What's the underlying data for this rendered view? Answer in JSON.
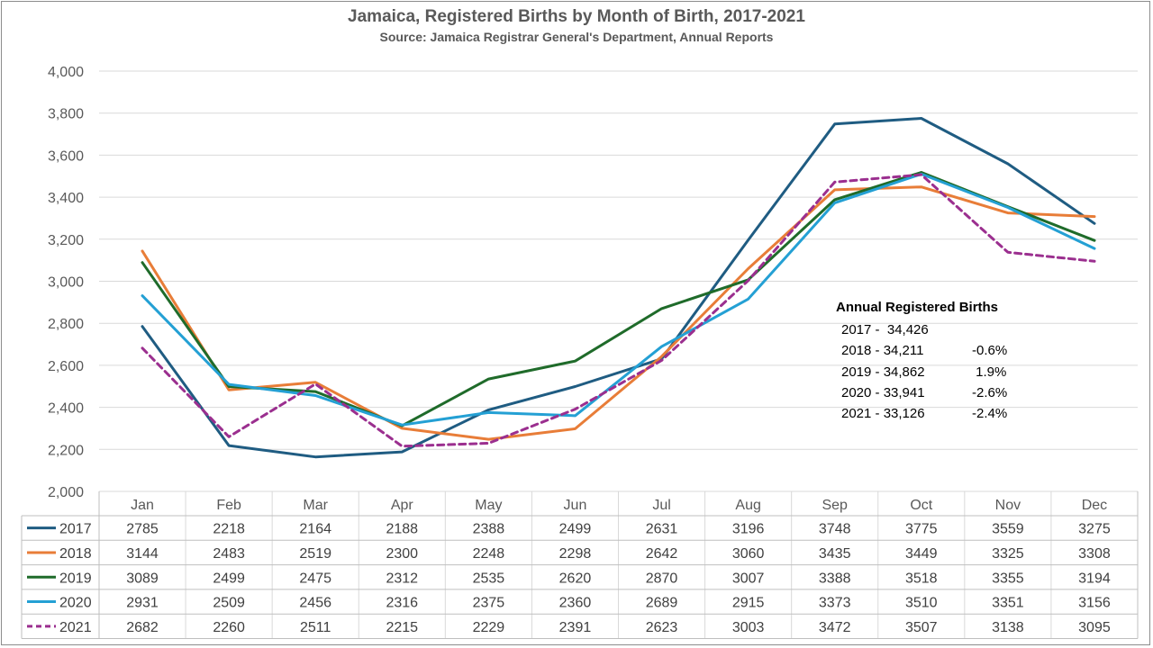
{
  "chart_data": {
    "type": "line",
    "title": "Jamaica, Registered Births by Month of Birth, 2017-2021",
    "subtitle": "Source: Jamaica Registrar General's Department, Annual Reports",
    "categories": [
      "Jan",
      "Feb",
      "Mar",
      "Apr",
      "May",
      "Jun",
      "Jul",
      "Aug",
      "Sep",
      "Oct",
      "Nov",
      "Dec"
    ],
    "ylim": [
      2000,
      4000
    ],
    "yticks": [
      "2,000",
      "2,200",
      "2,400",
      "2,600",
      "2,800",
      "3,000",
      "3,200",
      "3,400",
      "3,600",
      "3,800",
      "4,000"
    ],
    "grid": true,
    "legend": "data-table-left",
    "series": [
      {
        "name": "2017",
        "color": "#1f5c82",
        "dashed": false,
        "values": [
          2785,
          2218,
          2164,
          2188,
          2388,
          2499,
          2631,
          3196,
          3748,
          3775,
          3559,
          3275
        ]
      },
      {
        "name": "2018",
        "color": "#e87d38",
        "dashed": false,
        "values": [
          3144,
          2483,
          2519,
          2300,
          2248,
          2298,
          2642,
          3060,
          3435,
          3449,
          3325,
          3308
        ]
      },
      {
        "name": "2019",
        "color": "#1f6b2a",
        "dashed": false,
        "values": [
          3089,
          2499,
          2475,
          2312,
          2535,
          2620,
          2870,
          3007,
          3388,
          3518,
          3355,
          3194
        ]
      },
      {
        "name": "2020",
        "color": "#24a0d4",
        "dashed": false,
        "values": [
          2931,
          2509,
          2456,
          2316,
          2375,
          2360,
          2689,
          2915,
          3373,
          3510,
          3351,
          3156
        ]
      },
      {
        "name": "2021",
        "color": "#9b2f8f",
        "dashed": true,
        "values": [
          2682,
          2260,
          2511,
          2215,
          2229,
          2391,
          2623,
          3003,
          3472,
          3507,
          3138,
          3095
        ]
      }
    ],
    "annotation": {
      "title": "Annual Registered Births",
      "rows": [
        {
          "label": "2017 -  34,426",
          "change": ""
        },
        {
          "label": "2018 - 34,211",
          "change": "-0.6%"
        },
        {
          "label": "2019 - 34,862",
          "change": " 1.9%"
        },
        {
          "label": "2020 - 33,941",
          "change": "-2.6%"
        },
        {
          "label": "2021 - 33,126",
          "change": "-2.4%"
        }
      ]
    }
  }
}
